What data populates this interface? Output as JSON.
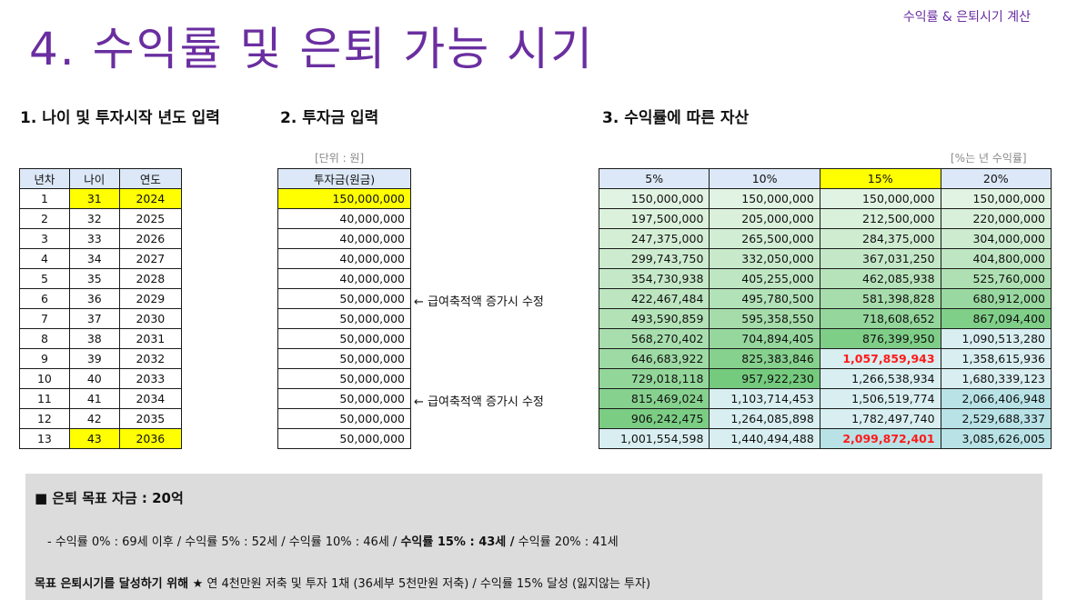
{
  "header": {
    "title": "4. 수익률 및 은퇴 가능 시기",
    "corner_label": "수익률 & 은퇴시기 계산"
  },
  "sections": {
    "s1": "1. 나이 및 투자시작 년도 입력",
    "s2": "2. 투자금 입력",
    "s3": "3. 수익률에 따른 자산"
  },
  "units": {
    "won": "[단위 : 원]",
    "rate": "[%는 년 수익률]"
  },
  "table1": {
    "headers": [
      "년차",
      "나이",
      "연도"
    ],
    "rows": [
      [
        "1",
        "31",
        "2024"
      ],
      [
        "2",
        "32",
        "2025"
      ],
      [
        "3",
        "33",
        "2026"
      ],
      [
        "4",
        "34",
        "2027"
      ],
      [
        "5",
        "35",
        "2028"
      ],
      [
        "6",
        "36",
        "2029"
      ],
      [
        "7",
        "37",
        "2030"
      ],
      [
        "8",
        "38",
        "2031"
      ],
      [
        "9",
        "39",
        "2032"
      ],
      [
        "10",
        "40",
        "2033"
      ],
      [
        "11",
        "41",
        "2034"
      ],
      [
        "12",
        "42",
        "2035"
      ],
      [
        "13",
        "43",
        "2036"
      ]
    ]
  },
  "table2": {
    "header": "투자금(원금)",
    "rows": [
      "150,000,000",
      "40,000,000",
      "40,000,000",
      "40,000,000",
      "40,000,000",
      "50,000,000",
      "50,000,000",
      "50,000,000",
      "50,000,000",
      "50,000,000",
      "50,000,000",
      "50,000,000",
      "50,000,000"
    ]
  },
  "notes": {
    "n1": "← 급여축적액 증가시 수정",
    "n2": "← 급여축적액 증가시 수정"
  },
  "table3": {
    "headers": [
      "5%",
      "10%",
      "15%",
      "20%"
    ],
    "rows": [
      [
        "150,000,000",
        "150,000,000",
        "150,000,000",
        "150,000,000"
      ],
      [
        "197,500,000",
        "205,000,000",
        "212,500,000",
        "220,000,000"
      ],
      [
        "247,375,000",
        "265,500,000",
        "284,375,000",
        "304,000,000"
      ],
      [
        "299,743,750",
        "332,050,000",
        "367,031,250",
        "404,800,000"
      ],
      [
        "354,730,938",
        "405,255,000",
        "462,085,938",
        "525,760,000"
      ],
      [
        "422,467,484",
        "495,780,500",
        "581,398,828",
        "680,912,000"
      ],
      [
        "493,590,859",
        "595,358,550",
        "718,608,652",
        "867,094,400"
      ],
      [
        "568,270,402",
        "704,894,405",
        "876,399,950",
        "1,090,513,280"
      ],
      [
        "646,683,922",
        "825,383,846",
        "1,057,859,943",
        "1,358,615,936"
      ],
      [
        "729,018,118",
        "957,922,230",
        "1,266,538,934",
        "1,680,339,123"
      ],
      [
        "815,469,024",
        "1,103,714,453",
        "1,506,519,774",
        "2,066,406,948"
      ],
      [
        "906,242,475",
        "1,264,085,898",
        "1,782,497,740",
        "2,529,688,337"
      ],
      [
        "1,001,554,598",
        "1,440,494,488",
        "2,099,872,401",
        "3,085,626,005"
      ]
    ]
  },
  "summary": {
    "goal": "■ 은퇴 목표 자금 : 20억",
    "line2_a": "- 수익률  0% : 69세 이후 / 수익률  5% : 52세 / 수익률 10% : 46세 / ",
    "line2_b": "수익률 15% : 43세 /",
    "line2_c": " 수익률 20% : 41세",
    "line3_a": "목표 은퇴시기를 달성하기 위해 ★",
    "line3_b": " 연 4천만원 저축 및 투자 1채 (36세부 5천만원 저축) / 수익률 15% 달성 (잃지않는 투자)"
  },
  "colors": {
    "title": "#6a2ea0",
    "header_blue": "#dce8f7",
    "highlight_yellow": "#ffff00",
    "target_red": "#ff1a1a",
    "panel_gray": "#dcdcdc"
  }
}
